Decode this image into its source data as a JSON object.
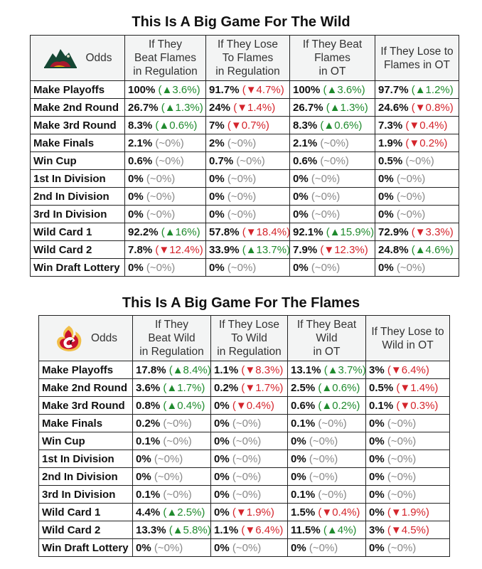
{
  "wild": {
    "title": "This Is A Big Game For The Wild",
    "odds_label": "Odds",
    "headers": [
      {
        "l1": "If They",
        "l2": "Beat Flames",
        "l3": "in Regulation"
      },
      {
        "l1": "If They Lose",
        "l2": "To Flames",
        "l3": "in Regulation"
      },
      {
        "l1": "If They Beat",
        "l2": "Flames",
        "l3": "in OT"
      },
      {
        "l1": "If They Lose to",
        "l2": "Flames in OT",
        "l3": ""
      }
    ],
    "rows": [
      {
        "label": "Make Playoffs",
        "cells": [
          {
            "pct": "100%",
            "chg": "(▲3.6%)",
            "dir": "up"
          },
          {
            "pct": "91.7%",
            "chg": "(▼4.7%)",
            "dir": "down"
          },
          {
            "pct": "100%",
            "chg": "(▲3.6%)",
            "dir": "up"
          },
          {
            "pct": "97.7%",
            "chg": "(▲1.2%)",
            "dir": "up"
          }
        ]
      },
      {
        "label": "Make 2nd Round",
        "cells": [
          {
            "pct": "26.7%",
            "chg": "(▲1.3%)",
            "dir": "up"
          },
          {
            "pct": "24%",
            "chg": "(▼1.4%)",
            "dir": "down"
          },
          {
            "pct": "26.7%",
            "chg": "(▲1.3%)",
            "dir": "up"
          },
          {
            "pct": "24.6%",
            "chg": "(▼0.8%)",
            "dir": "down"
          }
        ]
      },
      {
        "label": "Make 3rd Round",
        "cells": [
          {
            "pct": "8.3%",
            "chg": "(▲0.6%)",
            "dir": "up"
          },
          {
            "pct": "7%",
            "chg": "(▼0.7%)",
            "dir": "down"
          },
          {
            "pct": "8.3%",
            "chg": "(▲0.6%)",
            "dir": "up"
          },
          {
            "pct": "7.3%",
            "chg": "(▼0.4%)",
            "dir": "down"
          }
        ]
      },
      {
        "label": "Make Finals",
        "cells": [
          {
            "pct": "2.1%",
            "chg": "(~0%)",
            "dir": "flat"
          },
          {
            "pct": "2%",
            "chg": "(~0%)",
            "dir": "flat"
          },
          {
            "pct": "2.1%",
            "chg": "(~0%)",
            "dir": "flat"
          },
          {
            "pct": "1.9%",
            "chg": "(▼0.2%)",
            "dir": "down"
          }
        ]
      },
      {
        "label": "Win Cup",
        "cells": [
          {
            "pct": "0.6%",
            "chg": "(~0%)",
            "dir": "flat"
          },
          {
            "pct": "0.7%",
            "chg": "(~0%)",
            "dir": "flat"
          },
          {
            "pct": "0.6%",
            "chg": "(~0%)",
            "dir": "flat"
          },
          {
            "pct": "0.5%",
            "chg": "(~0%)",
            "dir": "flat"
          }
        ]
      },
      {
        "label": "1st In Division",
        "cells": [
          {
            "pct": "0%",
            "chg": "(~0%)",
            "dir": "flat"
          },
          {
            "pct": "0%",
            "chg": "(~0%)",
            "dir": "flat"
          },
          {
            "pct": "0%",
            "chg": "(~0%)",
            "dir": "flat"
          },
          {
            "pct": "0%",
            "chg": "(~0%)",
            "dir": "flat"
          }
        ]
      },
      {
        "label": "2nd In Division",
        "cells": [
          {
            "pct": "0%",
            "chg": "(~0%)",
            "dir": "flat"
          },
          {
            "pct": "0%",
            "chg": "(~0%)",
            "dir": "flat"
          },
          {
            "pct": "0%",
            "chg": "(~0%)",
            "dir": "flat"
          },
          {
            "pct": "0%",
            "chg": "(~0%)",
            "dir": "flat"
          }
        ]
      },
      {
        "label": "3rd In Division",
        "cells": [
          {
            "pct": "0%",
            "chg": "(~0%)",
            "dir": "flat"
          },
          {
            "pct": "0%",
            "chg": "(~0%)",
            "dir": "flat"
          },
          {
            "pct": "0%",
            "chg": "(~0%)",
            "dir": "flat"
          },
          {
            "pct": "0%",
            "chg": "(~0%)",
            "dir": "flat"
          }
        ]
      },
      {
        "label": "Wild Card 1",
        "cells": [
          {
            "pct": "92.2%",
            "chg": "(▲16%)",
            "dir": "up"
          },
          {
            "pct": "57.8%",
            "chg": "(▼18.4%)",
            "dir": "down"
          },
          {
            "pct": "92.1%",
            "chg": "(▲15.9%)",
            "dir": "up"
          },
          {
            "pct": "72.9%",
            "chg": "(▼3.3%)",
            "dir": "down"
          }
        ]
      },
      {
        "label": "Wild Card 2",
        "cells": [
          {
            "pct": "7.8%",
            "chg": "(▼12.4%)",
            "dir": "down"
          },
          {
            "pct": "33.9%",
            "chg": "(▲13.7%)",
            "dir": "up"
          },
          {
            "pct": "7.9%",
            "chg": "(▼12.3%)",
            "dir": "down"
          },
          {
            "pct": "24.8%",
            "chg": "(▲4.6%)",
            "dir": "up"
          }
        ]
      },
      {
        "label": "Win Draft Lottery",
        "cells": [
          {
            "pct": "0%",
            "chg": "(~0%)",
            "dir": "flat"
          },
          {
            "pct": "0%",
            "chg": "(~0%)",
            "dir": "flat"
          },
          {
            "pct": "0%",
            "chg": "(~0%)",
            "dir": "flat"
          },
          {
            "pct": "0%",
            "chg": "(~0%)",
            "dir": "flat"
          }
        ]
      }
    ]
  },
  "flames": {
    "title": "This Is A Big Game For The Flames",
    "odds_label": "Odds",
    "headers": [
      {
        "l1": "If They",
        "l2": "Beat Wild",
        "l3": "in Regulation"
      },
      {
        "l1": "If They Lose",
        "l2": "To Wild",
        "l3": "in Regulation"
      },
      {
        "l1": "If They Beat",
        "l2": "Wild",
        "l3": "in OT"
      },
      {
        "l1": "If They Lose to",
        "l2": "Wild in OT",
        "l3": ""
      }
    ],
    "rows": [
      {
        "label": "Make Playoffs",
        "cells": [
          {
            "pct": "17.8%",
            "chg": "(▲8.4%)",
            "dir": "up"
          },
          {
            "pct": "1.1%",
            "chg": "(▼8.3%)",
            "dir": "down"
          },
          {
            "pct": "13.1%",
            "chg": "(▲3.7%)",
            "dir": "up"
          },
          {
            "pct": "3%",
            "chg": "(▼6.4%)",
            "dir": "down"
          }
        ]
      },
      {
        "label": "Make 2nd Round",
        "cells": [
          {
            "pct": "3.6%",
            "chg": "(▲1.7%)",
            "dir": "up"
          },
          {
            "pct": "0.2%",
            "chg": "(▼1.7%)",
            "dir": "down"
          },
          {
            "pct": "2.5%",
            "chg": "(▲0.6%)",
            "dir": "up"
          },
          {
            "pct": "0.5%",
            "chg": "(▼1.4%)",
            "dir": "down"
          }
        ]
      },
      {
        "label": "Make 3rd Round",
        "cells": [
          {
            "pct": "0.8%",
            "chg": "(▲0.4%)",
            "dir": "up"
          },
          {
            "pct": "0%",
            "chg": "(▼0.4%)",
            "dir": "down"
          },
          {
            "pct": "0.6%",
            "chg": "(▲0.2%)",
            "dir": "up"
          },
          {
            "pct": "0.1%",
            "chg": "(▼0.3%)",
            "dir": "down"
          }
        ]
      },
      {
        "label": "Make Finals",
        "cells": [
          {
            "pct": "0.2%",
            "chg": "(~0%)",
            "dir": "flat"
          },
          {
            "pct": "0%",
            "chg": "(~0%)",
            "dir": "flat"
          },
          {
            "pct": "0.1%",
            "chg": "(~0%)",
            "dir": "flat"
          },
          {
            "pct": "0%",
            "chg": "(~0%)",
            "dir": "flat"
          }
        ]
      },
      {
        "label": "Win Cup",
        "cells": [
          {
            "pct": "0.1%",
            "chg": "(~0%)",
            "dir": "flat"
          },
          {
            "pct": "0%",
            "chg": "(~0%)",
            "dir": "flat"
          },
          {
            "pct": "0%",
            "chg": "(~0%)",
            "dir": "flat"
          },
          {
            "pct": "0%",
            "chg": "(~0%)",
            "dir": "flat"
          }
        ]
      },
      {
        "label": "1st In Division",
        "cells": [
          {
            "pct": "0%",
            "chg": "(~0%)",
            "dir": "flat"
          },
          {
            "pct": "0%",
            "chg": "(~0%)",
            "dir": "flat"
          },
          {
            "pct": "0%",
            "chg": "(~0%)",
            "dir": "flat"
          },
          {
            "pct": "0%",
            "chg": "(~0%)",
            "dir": "flat"
          }
        ]
      },
      {
        "label": "2nd In Division",
        "cells": [
          {
            "pct": "0%",
            "chg": "(~0%)",
            "dir": "flat"
          },
          {
            "pct": "0%",
            "chg": "(~0%)",
            "dir": "flat"
          },
          {
            "pct": "0%",
            "chg": "(~0%)",
            "dir": "flat"
          },
          {
            "pct": "0%",
            "chg": "(~0%)",
            "dir": "flat"
          }
        ]
      },
      {
        "label": "3rd In Division",
        "cells": [
          {
            "pct": "0.1%",
            "chg": "(~0%)",
            "dir": "flat"
          },
          {
            "pct": "0%",
            "chg": "(~0%)",
            "dir": "flat"
          },
          {
            "pct": "0.1%",
            "chg": "(~0%)",
            "dir": "flat"
          },
          {
            "pct": "0%",
            "chg": "(~0%)",
            "dir": "flat"
          }
        ]
      },
      {
        "label": "Wild Card 1",
        "cells": [
          {
            "pct": "4.4%",
            "chg": "(▲2.5%)",
            "dir": "up"
          },
          {
            "pct": "0%",
            "chg": "(▼1.9%)",
            "dir": "down"
          },
          {
            "pct": "1.5%",
            "chg": "(▼0.4%)",
            "dir": "down"
          },
          {
            "pct": "0%",
            "chg": "(▼1.9%)",
            "dir": "down"
          }
        ]
      },
      {
        "label": "Wild Card 2",
        "cells": [
          {
            "pct": "13.3%",
            "chg": "(▲5.8%)",
            "dir": "up"
          },
          {
            "pct": "1.1%",
            "chg": "(▼6.4%)",
            "dir": "down"
          },
          {
            "pct": "11.5%",
            "chg": "(▲4%)",
            "dir": "up"
          },
          {
            "pct": "3%",
            "chg": "(▼4.5%)",
            "dir": "down"
          }
        ]
      },
      {
        "label": "Win Draft Lottery",
        "cells": [
          {
            "pct": "0%",
            "chg": "(~0%)",
            "dir": "flat"
          },
          {
            "pct": "0%",
            "chg": "(~0%)",
            "dir": "flat"
          },
          {
            "pct": "0%",
            "chg": "(~0%)",
            "dir": "flat"
          },
          {
            "pct": "0%",
            "chg": "(~0%)",
            "dir": "flat"
          }
        ]
      }
    ]
  },
  "colors": {
    "up": "#1f8a2d",
    "down": "#d4242b",
    "flat": "#888888",
    "header_bg": "#f3f4f4"
  },
  "icons": {
    "wild_logo": "wild-logo-icon",
    "flames_logo": "flames-logo-icon"
  }
}
